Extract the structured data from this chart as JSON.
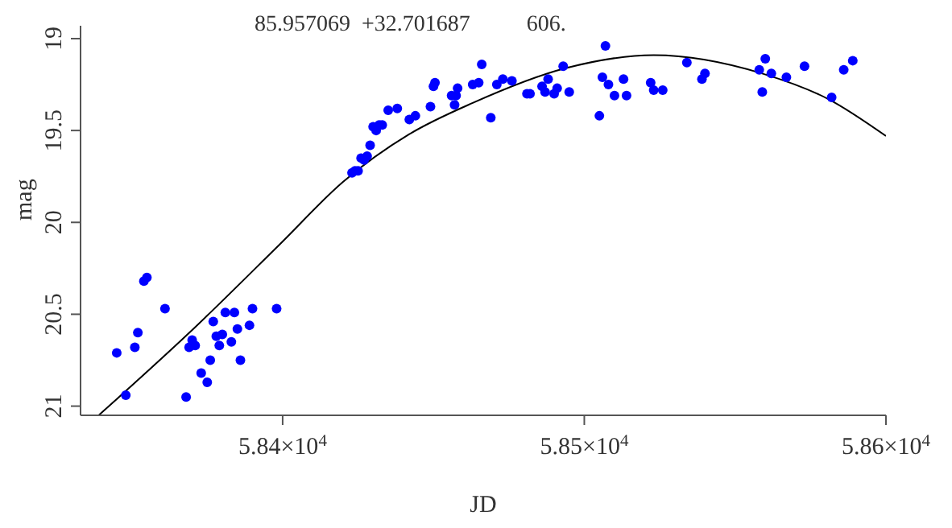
{
  "chart_data": {
    "type": "scatter",
    "title": "85.957069  +32.701687          606.",
    "xlabel": "JD",
    "ylabel": "mag",
    "xlim": [
      58333,
      58600
    ],
    "ylim": [
      21.05,
      18.93
    ],
    "xticks": [
      {
        "value": 58400,
        "label": "5.84×10$^{4}$"
      },
      {
        "value": 58500,
        "label": "5.85×10$^{4}$"
      },
      {
        "value": 58600,
        "label": "5.86×10$^{4}$"
      }
    ],
    "yticks": [
      19,
      19.5,
      20,
      20.5,
      21
    ],
    "marker": "circle",
    "series": [
      {
        "color": "#0000ff",
        "x": [
          58345,
          58348,
          58351,
          58352,
          58354,
          58355,
          58361,
          58368,
          58369,
          58370,
          58371,
          58373,
          58375,
          58376,
          58377,
          58378,
          58379,
          58380,
          58381,
          58383,
          58384,
          58385,
          58386,
          58389,
          58390,
          58398,
          58423,
          58424,
          58425,
          58426,
          58427,
          58428,
          58429,
          58430,
          58431,
          58432,
          58433,
          58435,
          58438,
          58442,
          58444,
          58449,
          58450,
          58450.5,
          58456,
          58457,
          58457.5,
          58458,
          58463,
          58465,
          58466,
          58469,
          58471,
          58473,
          58476,
          58481,
          58482,
          58486,
          58487,
          58488,
          58490,
          58491,
          58493,
          58495,
          58505,
          58506,
          58507,
          58508,
          58510,
          58513,
          58514,
          58522,
          58523,
          58526,
          58534,
          58539,
          58540,
          58558,
          58559,
          58560,
          58562,
          58567,
          58573,
          58582,
          58586,
          58589
        ],
        "values": [
          20.71,
          20.94,
          20.68,
          20.6,
          20.32,
          20.3,
          20.47,
          20.95,
          20.68,
          20.64,
          20.67,
          20.82,
          20.87,
          20.75,
          20.54,
          20.62,
          20.67,
          20.61,
          20.49,
          20.65,
          20.49,
          20.58,
          20.75,
          20.56,
          20.47,
          20.47,
          19.73,
          19.72,
          19.72,
          19.65,
          19.66,
          19.64,
          19.58,
          19.48,
          19.5,
          19.47,
          19.47,
          19.39,
          19.38,
          19.44,
          19.42,
          19.37,
          19.26,
          19.24,
          19.31,
          19.36,
          19.31,
          19.27,
          19.25,
          19.24,
          19.14,
          19.43,
          19.25,
          19.22,
          19.23,
          19.3,
          19.3,
          19.26,
          19.29,
          19.22,
          19.3,
          19.27,
          19.15,
          19.29,
          19.42,
          19.21,
          19.04,
          19.25,
          19.31,
          19.22,
          19.31,
          19.24,
          19.28,
          19.28,
          19.13,
          19.22,
          19.19,
          19.17,
          19.29,
          19.11,
          19.19,
          19.21,
          19.15,
          19.32,
          19.17,
          19.12
        ]
      },
      {
        "type": "line",
        "color": "#000000",
        "line_style": "solid",
        "marker": "none",
        "x": [
          58339,
          58371,
          58399,
          58420,
          58442,
          58463,
          58494,
          58523,
          58559,
          58581,
          58600
        ],
        "values": [
          21.05,
          20.57,
          20.12,
          19.78,
          19.52,
          19.35,
          19.16,
          19.09,
          19.19,
          19.33,
          19.53
        ]
      }
    ]
  }
}
